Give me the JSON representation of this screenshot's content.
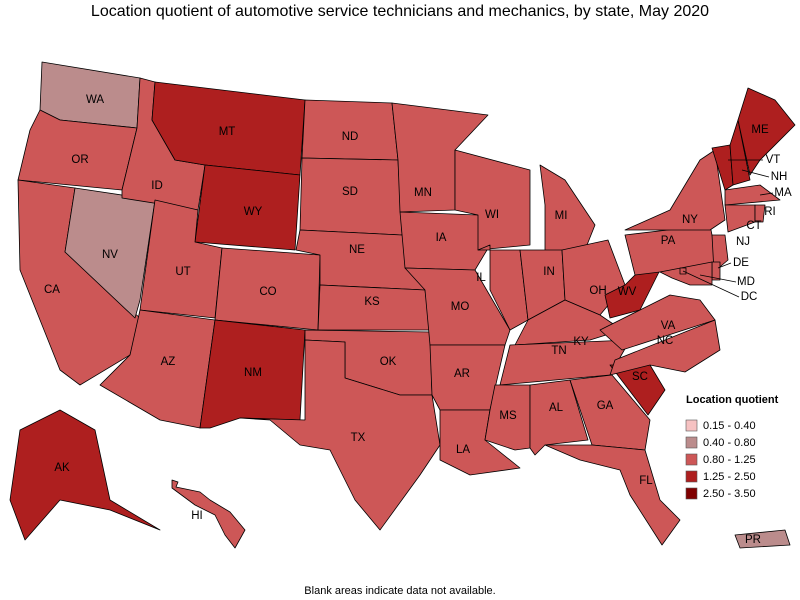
{
  "title": "Location quotient of automotive service technicians and mechanics, by state, May 2020",
  "states": [
    {
      "label": "WA",
      "bin": 1
    },
    {
      "label": "OR",
      "bin": 2
    },
    {
      "label": "CA",
      "bin": 2
    },
    {
      "label": "NV",
      "bin": 1
    },
    {
      "label": "ID",
      "bin": 2
    },
    {
      "label": "MT",
      "bin": 3
    },
    {
      "label": "WY",
      "bin": 3
    },
    {
      "label": "UT",
      "bin": 2
    },
    {
      "label": "CO",
      "bin": 2
    },
    {
      "label": "AZ",
      "bin": 2
    },
    {
      "label": "NM",
      "bin": 3
    },
    {
      "label": "ND",
      "bin": 2
    },
    {
      "label": "SD",
      "bin": 2
    },
    {
      "label": "NE",
      "bin": 2
    },
    {
      "label": "KS",
      "bin": 2
    },
    {
      "label": "OK",
      "bin": 2
    },
    {
      "label": "TX",
      "bin": 2
    },
    {
      "label": "MN",
      "bin": 2
    },
    {
      "label": "IA",
      "bin": 2
    },
    {
      "label": "MO",
      "bin": 2
    },
    {
      "label": "AR",
      "bin": 2
    },
    {
      "label": "LA",
      "bin": 2
    },
    {
      "label": "WI",
      "bin": 2
    },
    {
      "label": "IL",
      "bin": 2
    },
    {
      "label": "MI",
      "bin": 2
    },
    {
      "label": "IN",
      "bin": 2
    },
    {
      "label": "OH",
      "bin": 2
    },
    {
      "label": "KY",
      "bin": 2
    },
    {
      "label": "TN",
      "bin": 2
    },
    {
      "label": "MS",
      "bin": 2
    },
    {
      "label": "AL",
      "bin": 2
    },
    {
      "label": "GA",
      "bin": 2
    },
    {
      "label": "FL",
      "bin": 2
    },
    {
      "label": "SC",
      "bin": 3
    },
    {
      "label": "NC",
      "bin": 2
    },
    {
      "label": "VA",
      "bin": 2
    },
    {
      "label": "WV",
      "bin": 3
    },
    {
      "label": "PA",
      "bin": 2
    },
    {
      "label": "NY",
      "bin": 2
    },
    {
      "label": "VT",
      "bin": 3
    },
    {
      "label": "NH",
      "bin": 3
    },
    {
      "label": "ME",
      "bin": 3
    },
    {
      "label": "MA",
      "bin": 2
    },
    {
      "label": "CT",
      "bin": 2
    },
    {
      "label": "RI",
      "bin": 2
    },
    {
      "label": "NJ",
      "bin": 2
    },
    {
      "label": "DE",
      "bin": 2
    },
    {
      "label": "MD",
      "bin": 2
    },
    {
      "label": "DC",
      "bin": 2
    },
    {
      "label": "AK",
      "bin": 3
    },
    {
      "label": "HI",
      "bin": 2
    },
    {
      "label": "PR",
      "bin": 1
    }
  ],
  "legend": {
    "title": "Location quotient",
    "bins": [
      {
        "label": "0.15 - 0.40",
        "color": "#f6c2c2"
      },
      {
        "label": "0.40 - 0.80",
        "color": "#bb8c8c"
      },
      {
        "label": "0.80 - 1.25",
        "color": "#cd5757"
      },
      {
        "label": "1.25 - 2.50",
        "color": "#ae1f1f"
      },
      {
        "label": "2.50 - 3.50",
        "color": "#7f0000"
      }
    ]
  },
  "note": "Blank areas indicate data not available."
}
